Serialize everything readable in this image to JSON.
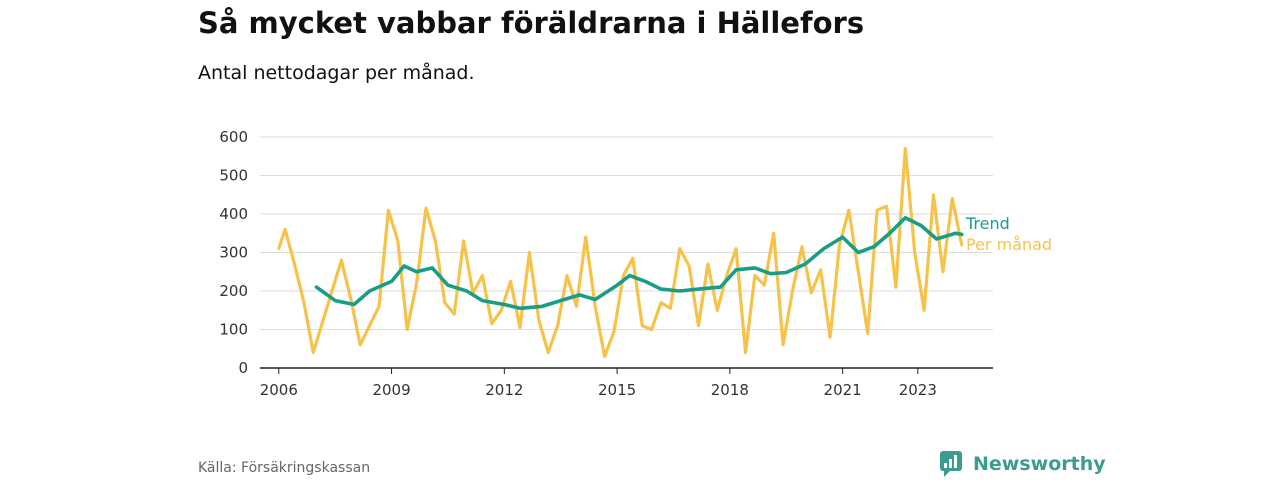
{
  "title": "Så mycket vabbar föräldrarna i Hällefors",
  "subtitle": "Antal nettodagar per månad.",
  "source": "Källa: Försäkringskassan",
  "brand": "Newsworthy",
  "colors": {
    "trend": "#1a9c88",
    "monthly": "#f7c24a",
    "grid": "#dddddd",
    "axis": "#222222",
    "brand": "#3a9d8f"
  },
  "chart_data": {
    "type": "line",
    "ylim": [
      0,
      600
    ],
    "yticks": [
      0,
      100,
      200,
      300,
      400,
      500,
      600
    ],
    "xticks": [
      "2006",
      "2009",
      "2012",
      "2015",
      "2018",
      "2021",
      "2023"
    ],
    "series": [
      {
        "name": "Trend",
        "points": [
          [
            "2007-01",
            210
          ],
          [
            "2007-07",
            175
          ],
          [
            "2008-01",
            165
          ],
          [
            "2008-06",
            200
          ],
          [
            "2009-01",
            225
          ],
          [
            "2009-05",
            265
          ],
          [
            "2009-09",
            250
          ],
          [
            "2010-02",
            260
          ],
          [
            "2010-07",
            215
          ],
          [
            "2011-01",
            200
          ],
          [
            "2011-06",
            175
          ],
          [
            "2012-01",
            165
          ],
          [
            "2012-06",
            155
          ],
          [
            "2013-01",
            160
          ],
          [
            "2013-07",
            175
          ],
          [
            "2014-01",
            190
          ],
          [
            "2014-06",
            178
          ],
          [
            "2015-01",
            215
          ],
          [
            "2015-05",
            240
          ],
          [
            "2015-10",
            225
          ],
          [
            "2016-03",
            205
          ],
          [
            "2016-09",
            200
          ],
          [
            "2017-03",
            205
          ],
          [
            "2017-10",
            210
          ],
          [
            "2018-03",
            255
          ],
          [
            "2018-09",
            260
          ],
          [
            "2019-02",
            245
          ],
          [
            "2019-07",
            248
          ],
          [
            "2020-01",
            270
          ],
          [
            "2020-07",
            310
          ],
          [
            "2021-01",
            340
          ],
          [
            "2021-06",
            300
          ],
          [
            "2021-11",
            315
          ],
          [
            "2022-04",
            350
          ],
          [
            "2022-09",
            390
          ],
          [
            "2023-02",
            370
          ],
          [
            "2023-07",
            335
          ],
          [
            "2024-01",
            350
          ],
          [
            "2024-03",
            347
          ]
        ]
      },
      {
        "name": "Per månad",
        "points": [
          [
            "2006-01",
            310
          ],
          [
            "2006-03",
            360
          ],
          [
            "2006-06",
            270
          ],
          [
            "2006-09",
            170
          ],
          [
            "2006-12",
            40
          ],
          [
            "2007-03",
            120
          ],
          [
            "2007-06",
            200
          ],
          [
            "2007-09",
            280
          ],
          [
            "2007-12",
            180
          ],
          [
            "2008-03",
            60
          ],
          [
            "2008-06",
            110
          ],
          [
            "2008-09",
            160
          ],
          [
            "2008-12",
            410
          ],
          [
            "2009-03",
            330
          ],
          [
            "2009-06",
            100
          ],
          [
            "2009-09",
            220
          ],
          [
            "2009-12",
            415
          ],
          [
            "2010-03",
            330
          ],
          [
            "2010-06",
            170
          ],
          [
            "2010-09",
            140
          ],
          [
            "2010-12",
            330
          ],
          [
            "2011-03",
            195
          ],
          [
            "2011-06",
            240
          ],
          [
            "2011-09",
            115
          ],
          [
            "2011-12",
            150
          ],
          [
            "2012-03",
            225
          ],
          [
            "2012-06",
            105
          ],
          [
            "2012-09",
            300
          ],
          [
            "2012-12",
            125
          ],
          [
            "2013-03",
            40
          ],
          [
            "2013-06",
            110
          ],
          [
            "2013-09",
            240
          ],
          [
            "2013-12",
            160
          ],
          [
            "2014-03",
            340
          ],
          [
            "2014-06",
            160
          ],
          [
            "2014-09",
            30
          ],
          [
            "2014-12",
            95
          ],
          [
            "2015-03",
            240
          ],
          [
            "2015-06",
            285
          ],
          [
            "2015-09",
            110
          ],
          [
            "2015-12",
            100
          ],
          [
            "2016-03",
            170
          ],
          [
            "2016-06",
            155
          ],
          [
            "2016-09",
            310
          ],
          [
            "2016-12",
            265
          ],
          [
            "2017-03",
            110
          ],
          [
            "2017-06",
            270
          ],
          [
            "2017-09",
            150
          ],
          [
            "2017-12",
            240
          ],
          [
            "2018-03",
            310
          ],
          [
            "2018-06",
            40
          ],
          [
            "2018-09",
            240
          ],
          [
            "2018-12",
            215
          ],
          [
            "2019-03",
            350
          ],
          [
            "2019-06",
            60
          ],
          [
            "2019-09",
            200
          ],
          [
            "2019-12",
            315
          ],
          [
            "2020-03",
            195
          ],
          [
            "2020-06",
            255
          ],
          [
            "2020-09",
            80
          ],
          [
            "2020-12",
            320
          ],
          [
            "2021-03",
            410
          ],
          [
            "2021-06",
            250
          ],
          [
            "2021-09",
            90
          ],
          [
            "2021-12",
            410
          ],
          [
            "2022-03",
            420
          ],
          [
            "2022-06",
            210
          ],
          [
            "2022-09",
            570
          ],
          [
            "2022-12",
            300
          ],
          [
            "2023-03",
            150
          ],
          [
            "2023-06",
            450
          ],
          [
            "2023-09",
            250
          ],
          [
            "2023-12",
            440
          ],
          [
            "2024-03",
            320
          ]
        ]
      }
    ]
  }
}
